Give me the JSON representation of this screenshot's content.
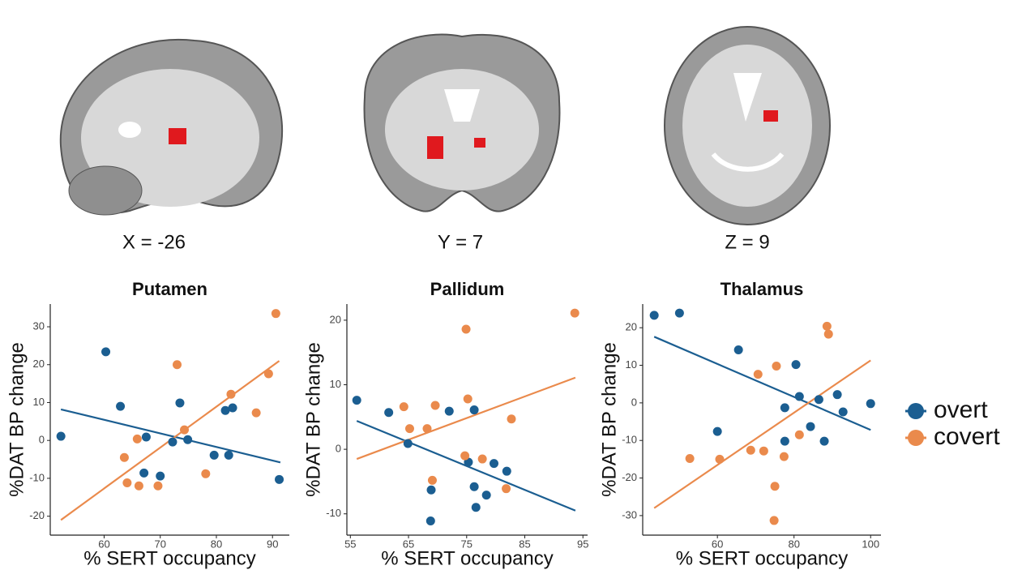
{
  "brain_labels": [
    "X = -26",
    "Y = 7",
    "Z = 9"
  ],
  "chart_data": [
    {
      "type": "scatter",
      "title": "Putamen",
      "xlabel": "% SERT occupancy",
      "ylabel": "%DAT BP change",
      "xlim": [
        50.4,
        93
      ],
      "ylim": [
        -25,
        36
      ],
      "xticks": [
        60,
        70,
        80,
        90
      ],
      "yticks": [
        -20,
        -10,
        0,
        10,
        20,
        30
      ],
      "series": [
        {
          "name": "overt",
          "color": "#1b5e91",
          "x": [
            52.3,
            60.3,
            62.9,
            67.1,
            67.5,
            70.0,
            72.2,
            73.5,
            74.9,
            79.6,
            81.6,
            82.2,
            82.9,
            91.2
          ],
          "values": [
            1.1,
            23.4,
            9.0,
            -8.6,
            0.9,
            -9.4,
            -0.4,
            9.9,
            0.2,
            -3.9,
            7.9,
            -3.9,
            8.6,
            -10.3
          ],
          "fit_x": [
            52.3,
            91.4
          ],
          "fit_values": [
            8.2,
            -5.8
          ]
        },
        {
          "name": "covert",
          "color": "#ea8a4c",
          "x": [
            63.6,
            64.1,
            65.9,
            66.2,
            69.6,
            73.0,
            74.3,
            78.1,
            82.6,
            87.1,
            89.3,
            90.6
          ],
          "values": [
            -4.5,
            -11.2,
            0.4,
            -12.0,
            -12.0,
            20.0,
            2.8,
            -8.8,
            12.2,
            7.3,
            17.6,
            33.5
          ],
          "fit_x": [
            52.3,
            91.2
          ],
          "fit_values": [
            -21.0,
            21.0
          ]
        }
      ]
    },
    {
      "type": "scatter",
      "title": "Pallidum",
      "xlabel": "% SERT occupancy",
      "ylabel": "%DAT BP change",
      "xlim": [
        54.4,
        95.8
      ],
      "ylim": [
        -13.3,
        22.5
      ],
      "xticks": [
        55,
        65,
        75,
        85,
        95
      ],
      "yticks": [
        -10,
        0,
        10,
        20
      ],
      "series": [
        {
          "name": "overt",
          "color": "#1b5e91",
          "x": [
            56.1,
            61.6,
            64.9,
            72.0,
            75.3,
            76.3,
            76.3,
            76.6,
            78.4,
            79.7,
            81.9,
            68.8,
            68.9
          ],
          "values": [
            7.6,
            5.7,
            0.9,
            5.9,
            -2.0,
            6.1,
            -5.8,
            -9.0,
            -7.1,
            -2.2,
            -3.4,
            -11.1,
            -6.3
          ],
          "fit_x": [
            56.1,
            93.7
          ],
          "fit_values": [
            4.4,
            -9.5
          ]
        },
        {
          "name": "covert",
          "color": "#ea8a4c",
          "x": [
            64.2,
            65.2,
            68.2,
            69.6,
            69.1,
            74.9,
            75.2,
            74.7,
            77.7,
            81.8,
            82.7,
            93.6
          ],
          "values": [
            6.6,
            3.2,
            3.2,
            6.8,
            -4.8,
            18.6,
            7.8,
            -1.0,
            -1.5,
            -6.1,
            4.7,
            21.1
          ],
          "fit_x": [
            56.1,
            93.7
          ],
          "fit_values": [
            -1.5,
            11.1
          ]
        }
      ]
    },
    {
      "type": "scatter",
      "title": "Thalamus",
      "xlabel": "% SERT occupancy",
      "ylabel": "%DAT BP change",
      "xlim": [
        40.5,
        102.7
      ],
      "ylim": [
        -35.2,
        26.3
      ],
      "xticks": [
        60,
        80,
        100
      ],
      "yticks": [
        -30,
        -20,
        -10,
        0,
        10,
        20
      ],
      "legend": "right",
      "series": [
        {
          "name": "overt",
          "color": "#1b5e91",
          "x": [
            43.5,
            50.1,
            60.0,
            65.5,
            77.6,
            77.6,
            80.5,
            81.4,
            84.3,
            86.5,
            87.9,
            91.3,
            92.8,
            100.0
          ],
          "values": [
            23.3,
            23.9,
            -7.6,
            14.1,
            -1.3,
            -10.2,
            10.2,
            1.7,
            -6.3,
            0.9,
            -10.2,
            2.2,
            -2.4,
            -0.2
          ],
          "fit_x": [
            43.5,
            100
          ],
          "fit_values": [
            17.6,
            -7.2
          ]
        },
        {
          "name": "covert",
          "color": "#ea8a4c",
          "x": [
            52.8,
            60.6,
            68.7,
            70.6,
            72.1,
            75.4,
            75.0,
            77.4,
            74.8,
            81.4,
            88.6,
            89.0
          ],
          "values": [
            -14.8,
            -15.0,
            -12.6,
            7.6,
            -12.8,
            9.8,
            -22.2,
            -14.3,
            -31.3,
            -8.5,
            20.4,
            18.3
          ],
          "fit_x": [
            43.5,
            100
          ],
          "fit_values": [
            -28.0,
            11.3
          ]
        }
      ]
    }
  ]
}
